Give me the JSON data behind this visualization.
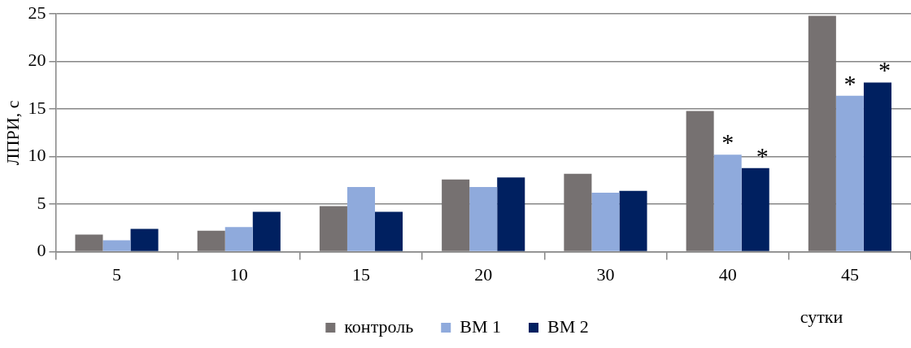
{
  "chart_data": {
    "type": "bar",
    "ylabel": "ЛПРИ, с",
    "xlabel": "сутки",
    "categories": [
      "5",
      "10",
      "15",
      "20",
      "30",
      "40",
      "45"
    ],
    "series": [
      {
        "name": "контроль",
        "color": "#767171",
        "values": [
          1.8,
          2.2,
          4.8,
          7.6,
          8.2,
          14.8,
          24.8
        ]
      },
      {
        "name": "ВМ 1",
        "color": "#8faadc",
        "values": [
          1.2,
          2.6,
          6.8,
          6.8,
          6.2,
          10.2,
          16.4
        ]
      },
      {
        "name": "ВМ 2",
        "color": "#002060",
        "values": [
          2.4,
          4.2,
          4.2,
          7.8,
          6.4,
          8.8,
          17.8
        ]
      }
    ],
    "ylim": [
      0,
      25
    ],
    "yticks": [
      0,
      5,
      10,
      15,
      20,
      25
    ],
    "grid": "y",
    "legend": "bottom",
    "annotations": [
      {
        "text": "*",
        "x": "40",
        "y": 10.2
      },
      "*",
      {
        "text": "*",
        "x": "45",
        "y": 16.4
      },
      "*"
    ]
  }
}
